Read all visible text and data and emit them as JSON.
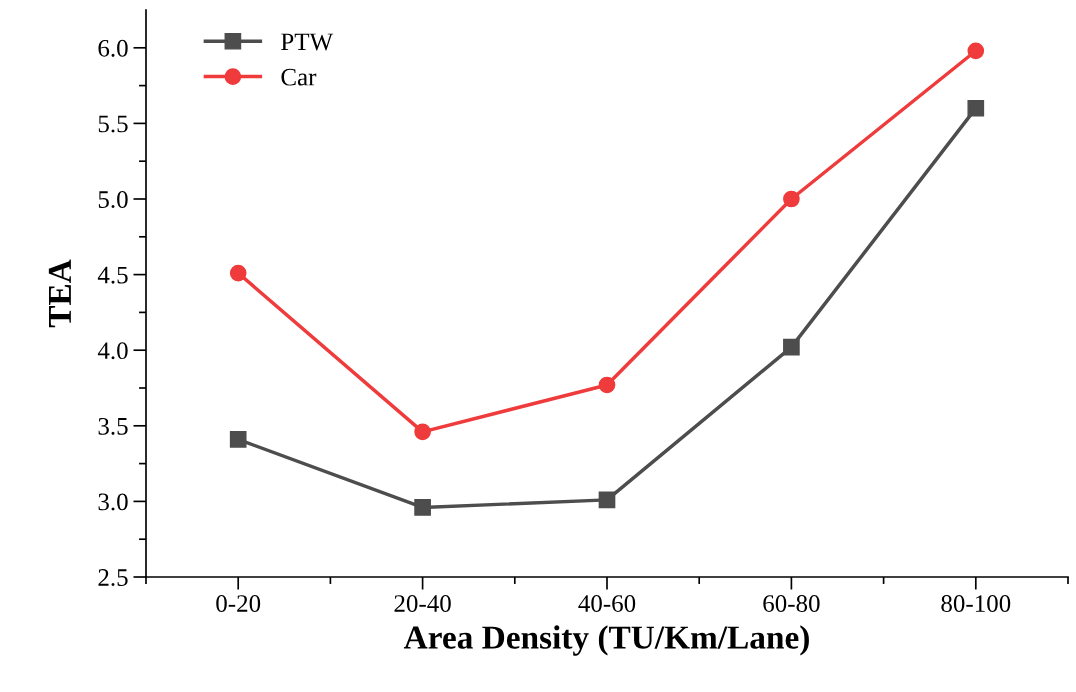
{
  "chart_data": {
    "type": "line",
    "xlabel": "Area Density (TU/Km/Lane)",
    "ylabel": "TEA",
    "categories": [
      "0-20",
      "20-40",
      "40-60",
      "60-80",
      "80-100"
    ],
    "series": [
      {
        "name": "PTW",
        "color": "#4d4d4d",
        "marker": "square",
        "values": [
          3.41,
          2.96,
          3.01,
          4.02,
          5.6
        ]
      },
      {
        "name": "Car",
        "color": "#ef3b3b",
        "marker": "circle",
        "values": [
          4.51,
          3.46,
          3.77,
          5.0,
          5.98
        ]
      }
    ],
    "ylim": [
      2.5,
      6.25
    ],
    "yticks": [
      {
        "value": 2.5,
        "label": "2.5"
      },
      {
        "value": 3,
        "label": "3.0"
      },
      {
        "value": 3.5,
        "label": "3.5"
      },
      {
        "value": 4,
        "label": "4.0"
      },
      {
        "value": 4.5,
        "label": "4.5"
      },
      {
        "value": 5,
        "label": "5.0"
      },
      {
        "value": 5.5,
        "label": "5.5"
      },
      {
        "value": 6,
        "label": "6.0"
      }
    ],
    "grid": false,
    "legend": "top left",
    "line_style": "solid"
  }
}
